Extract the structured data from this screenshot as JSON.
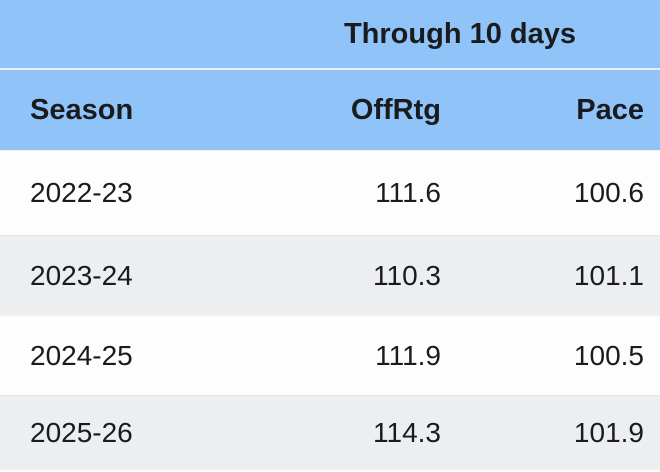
{
  "table": {
    "title": "Through 10 days",
    "columns": [
      "Season",
      "OffRtg",
      "Pace"
    ],
    "rows": [
      {
        "season": "2022-23",
        "offrtg": "111.6",
        "pace": "100.6"
      },
      {
        "season": "2023-24",
        "offrtg": "110.3",
        "pace": "101.1"
      },
      {
        "season": "2024-25",
        "offrtg": "111.9",
        "pace": "100.5"
      },
      {
        "season": "2025-26",
        "offrtg": "114.3",
        "pace": "101.9"
      }
    ],
    "colors": {
      "header_bg": "#90C4F8",
      "row_bg": "#FDFDFE",
      "row_alt_bg": "#EDEEF0",
      "text": "#1A1B1E",
      "band_divider": "#E7F1FD",
      "row_divider": "#E4E5E7"
    }
  },
  "chart_data": {
    "type": "table",
    "title": "Through 10 days",
    "categories": [
      "2022-23",
      "2023-24",
      "2024-25",
      "2025-26"
    ],
    "series": [
      {
        "name": "OffRtg",
        "values": [
          111.6,
          110.3,
          111.9,
          114.3
        ]
      },
      {
        "name": "Pace",
        "values": [
          100.6,
          101.1,
          100.5,
          101.9
        ]
      }
    ]
  }
}
